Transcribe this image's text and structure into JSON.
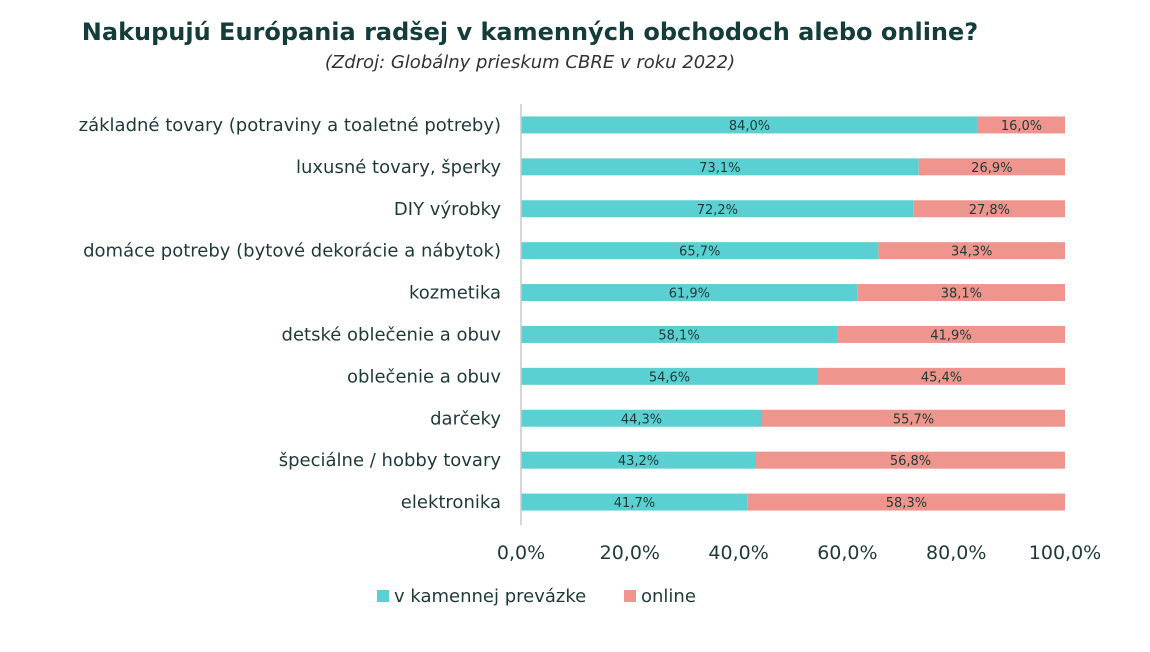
{
  "title": "Nakupujú Európania radšej v kamenných obchodoch alebo online?",
  "subtitle": "(Zdroj: Globálny prieskum CBRE v roku 2022)",
  "colors": {
    "store": "#5ad0d2",
    "online": "#f0958d",
    "axis": "#c8c8c8"
  },
  "chart_data": {
    "type": "bar",
    "orientation": "horizontal",
    "stacked": true,
    "title": "Nakupujú Európania radšej v kamenných obchodoch alebo online?",
    "subtitle": "(Zdroj: Globálny prieskum CBRE v roku 2022)",
    "categories": [
      "základné tovary (potraviny a toaletné potreby)",
      "luxusné tovary, šperky",
      "DIY výrobky",
      "domáce potreby (bytové dekorácie a nábytok)",
      "kozmetika",
      "detské oblečenie a obuv",
      "oblečenie a obuv",
      "darčeky",
      "špeciálne / hobby tovary",
      "elektronika"
    ],
    "series": [
      {
        "name": "v kamennej prevázke",
        "values": [
          84.0,
          73.1,
          72.2,
          65.7,
          61.9,
          58.1,
          54.6,
          44.3,
          43.2,
          41.7
        ],
        "labels": [
          "84,0%",
          "73,1%",
          "72,2%",
          "65,7%",
          "61,9%",
          "58,1%",
          "54,6%",
          "44,3%",
          "43,2%",
          "41,7%"
        ]
      },
      {
        "name": "online",
        "values": [
          16.0,
          26.9,
          27.8,
          34.3,
          38.1,
          41.9,
          45.4,
          55.7,
          56.8,
          58.3
        ],
        "labels": [
          "16,0%",
          "26,9%",
          "27,8%",
          "34,3%",
          "38,1%",
          "41,9%",
          "45,4%",
          "55,7%",
          "56,8%",
          "58,3%"
        ]
      }
    ],
    "xlim": [
      0,
      100
    ],
    "xticks": [
      0,
      20,
      40,
      60,
      80,
      100
    ],
    "xtick_labels": [
      "0,0%",
      "20,0%",
      "40,0%",
      "60,0%",
      "80,0%",
      "100,0%"
    ],
    "grid": false,
    "legend": "bottom-left"
  }
}
